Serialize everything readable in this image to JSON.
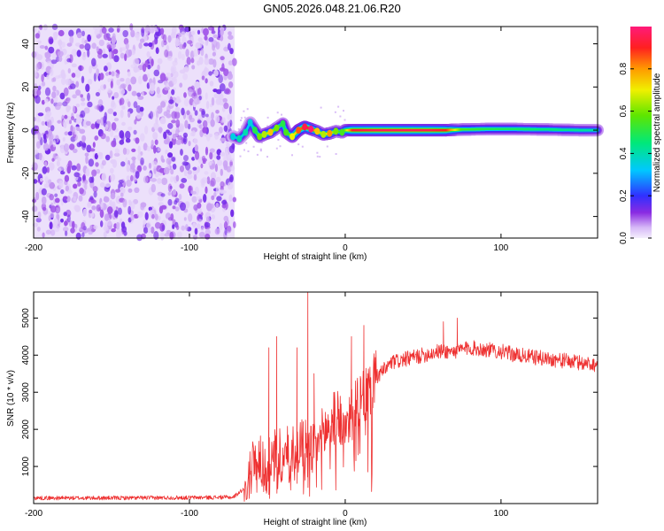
{
  "title": "GN05.2026.048.21.06.R20",
  "chart_data": [
    {
      "type": "heatmap",
      "xlabel": "Height of straight line (km)",
      "ylabel": "Frequency (Hz)",
      "xlim": [
        -200,
        162
      ],
      "ylim": [
        -50,
        48
      ],
      "xticks": [
        "-200",
        "-100",
        "0",
        "100"
      ],
      "xtick_values": [
        -200,
        -100,
        0,
        100
      ],
      "yticks": [
        "40",
        "20",
        "0",
        "-20",
        "-40"
      ],
      "ytick_values": [
        40,
        20,
        0,
        -20,
        -40
      ],
      "noise_region_x": [
        -200,
        -71
      ],
      "signal_track": [
        {
          "x": -72,
          "y": -3.0,
          "amp": 0.3
        },
        {
          "x": -68,
          "y": -4.0,
          "amp": 0.35
        },
        {
          "x": -64,
          "y": -1.0,
          "amp": 0.35
        },
        {
          "x": -61,
          "y": 3.5,
          "amp": 0.3
        },
        {
          "x": -58,
          "y": 0.0,
          "amp": 0.45
        },
        {
          "x": -55,
          "y": -3.0,
          "amp": 0.55
        },
        {
          "x": -52,
          "y": -2.0,
          "amp": 0.6
        },
        {
          "x": -48,
          "y": -1.0,
          "amp": 0.7
        },
        {
          "x": -44,
          "y": 1.0,
          "amp": 0.55
        },
        {
          "x": -40,
          "y": 3.0,
          "amp": 0.45
        },
        {
          "x": -38,
          "y": -1.0,
          "amp": 0.5
        },
        {
          "x": -34,
          "y": -3.0,
          "amp": 0.65
        },
        {
          "x": -30,
          "y": 0.0,
          "amp": 0.8
        },
        {
          "x": -26,
          "y": 1.5,
          "amp": 0.9
        },
        {
          "x": -22,
          "y": 0.5,
          "amp": 0.95
        },
        {
          "x": -18,
          "y": -0.5,
          "amp": 0.7
        },
        {
          "x": -14,
          "y": -2.0,
          "amp": 0.6
        },
        {
          "x": -10,
          "y": -1.5,
          "amp": 0.75
        },
        {
          "x": -6,
          "y": -0.5,
          "amp": 0.55
        },
        {
          "x": -2,
          "y": -1.0,
          "amp": 0.5
        },
        {
          "x": 0,
          "y": 0.0,
          "amp": 0.6
        },
        {
          "x": 5,
          "y": 0.0,
          "amp": 0.92
        },
        {
          "x": 20,
          "y": 0.0,
          "amp": 0.96
        },
        {
          "x": 40,
          "y": 0.0,
          "amp": 0.96
        },
        {
          "x": 55,
          "y": 0.0,
          "amp": 0.95
        },
        {
          "x": 65,
          "y": 0.0,
          "amp": 0.9
        },
        {
          "x": 75,
          "y": 0.3,
          "amp": 0.55
        },
        {
          "x": 90,
          "y": 0.5,
          "amp": 0.5
        },
        {
          "x": 110,
          "y": 0.5,
          "amp": 0.48
        },
        {
          "x": 130,
          "y": 0.3,
          "amp": 0.45
        },
        {
          "x": 150,
          "y": 0.0,
          "amp": 0.42
        },
        {
          "x": 162,
          "y": 0.0,
          "amp": 0.4
        }
      ],
      "colorbar": {
        "label": "Normalized spectral amplitude",
        "range": [
          0,
          1
        ],
        "ticks": [
          "0.0",
          "0.2",
          "0.4",
          "0.6",
          "0.8"
        ],
        "tick_values": [
          0.0,
          0.2,
          0.4,
          0.6,
          0.8
        ]
      }
    },
    {
      "type": "line",
      "xlabel": "Height of straight line (km)",
      "ylabel": "SNR (10 * v/v)",
      "xlim": [
        -200,
        162
      ],
      "ylim": [
        0,
        5700
      ],
      "xticks": [
        "-200",
        "-100",
        "0",
        "100"
      ],
      "xtick_values": [
        -200,
        -100,
        0,
        100
      ],
      "yticks": [
        "5000",
        "4000",
        "3000",
        "2000",
        "1000"
      ],
      "ytick_values": [
        5000,
        4000,
        3000,
        2000,
        1000
      ],
      "series": [
        {
          "name": "SNR",
          "color": "#ee3030",
          "x": [
            -200,
            -150,
            -100,
            -72,
            -65,
            -62,
            -58,
            -55,
            -50,
            -45,
            -40,
            -35,
            -30,
            -25,
            -20,
            -15,
            -10,
            -5,
            0,
            5,
            10,
            15,
            20,
            30,
            40,
            50,
            60,
            70,
            80,
            90,
            100,
            110,
            120,
            130,
            140,
            150,
            162
          ],
          "y": [
            150,
            150,
            160,
            170,
            400,
            800,
            1100,
            1200,
            900,
            1300,
            1200,
            1500,
            1700,
            1600,
            1400,
            1800,
            2100,
            2400,
            2200,
            2500,
            2700,
            3000,
            3400,
            3800,
            3900,
            4000,
            4100,
            4100,
            4200,
            4150,
            4100,
            4000,
            3950,
            3900,
            3850,
            3800,
            3750
          ],
          "peaks": [
            {
              "x": -49,
              "y": 4200
            },
            {
              "x": -44,
              "y": 4500
            },
            {
              "x": -31,
              "y": 4200
            },
            {
              "x": -24,
              "y": 5700
            },
            {
              "x": -20,
              "y": 3500
            },
            {
              "x": 4,
              "y": 4500
            },
            {
              "x": 12,
              "y": 4800
            },
            {
              "x": 63,
              "y": 4900
            },
            {
              "x": 72,
              "y": 5000
            }
          ]
        }
      ]
    }
  ]
}
